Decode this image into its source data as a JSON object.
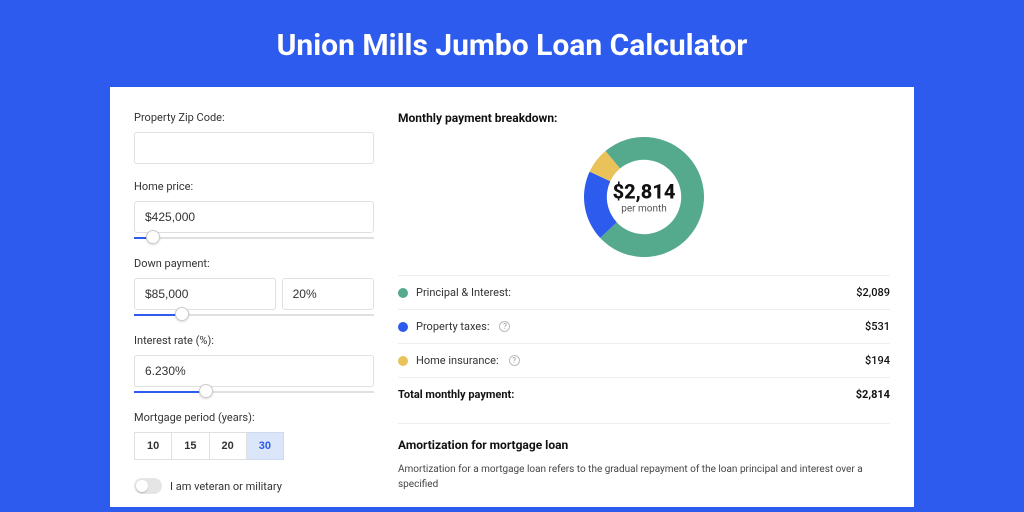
{
  "page": {
    "title": "Union Mills Jumbo Loan Calculator",
    "bg_color": "#2c5bed",
    "card_bg": "#ffffff"
  },
  "form": {
    "zip": {
      "label": "Property Zip Code:",
      "value": ""
    },
    "home_price": {
      "label": "Home price:",
      "value": "$425,000",
      "slider_pct": 8
    },
    "down_payment": {
      "label": "Down payment:",
      "amount": "$85,000",
      "pct": "20%",
      "slider_pct": 20
    },
    "interest_rate": {
      "label": "Interest rate (%):",
      "value": "6.230%",
      "slider_pct": 30
    },
    "mortgage_period": {
      "label": "Mortgage period (years):",
      "options": [
        "10",
        "15",
        "20",
        "30"
      ],
      "selected": "30"
    },
    "veteran": {
      "label": "I am veteran or military",
      "checked": false
    }
  },
  "breakdown": {
    "title": "Monthly payment breakdown:",
    "center_value": "$2,814",
    "center_label": "per month",
    "donut": {
      "size": 120,
      "inner_ratio": 0.62,
      "slices": [
        {
          "label": "Principal & Interest",
          "value": 2089,
          "color": "#55a98c",
          "start": 320,
          "sweep": 267
        },
        {
          "label": "Property taxes",
          "value": 531,
          "color": "#2c5bed",
          "start": 227,
          "sweep": 68
        },
        {
          "label": "Home insurance",
          "value": 194,
          "color": "#e9c35a",
          "start": 295,
          "sweep": 25
        }
      ]
    },
    "rows": [
      {
        "dot": "#55a98c",
        "label": "Principal & Interest:",
        "value": "$2,089",
        "help": false
      },
      {
        "dot": "#2c5bed",
        "label": "Property taxes:",
        "value": "$531",
        "help": true
      },
      {
        "dot": "#e9c35a",
        "label": "Home insurance:",
        "value": "$194",
        "help": true
      }
    ],
    "total": {
      "label": "Total monthly payment:",
      "value": "$2,814"
    }
  },
  "amortization": {
    "title": "Amortization for mortgage loan",
    "text": "Amortization for a mortgage loan refers to the gradual repayment of the loan principal and interest over a specified"
  }
}
